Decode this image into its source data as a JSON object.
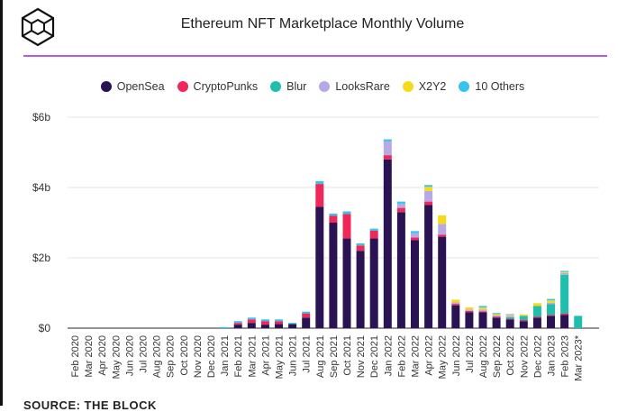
{
  "header": {
    "title": "Ethereum NFT Marketplace Monthly Volume",
    "logo_icon": "cube-logo-icon",
    "source": "SOURCE: THE BLOCK"
  },
  "colors": {
    "OpenSea": "#2a1352",
    "CryptoPunks": "#f0285a",
    "Blur": "#1fbfae",
    "LooksRare": "#b7a8e6",
    "X2Y2": "#f5d91c",
    "10 Others": "#35c3ef",
    "accent_rule": "#b05be0"
  },
  "chart_data": {
    "type": "bar",
    "stacked": true,
    "title": "Ethereum NFT Marketplace Monthly Volume",
    "xlabel": "",
    "ylabel": "",
    "ylim": [
      0,
      6
    ],
    "yunit": "$ billions",
    "yticks": [
      0,
      2,
      4,
      6
    ],
    "ytick_labels": [
      "$0",
      "$2b",
      "$4b",
      "$6b"
    ],
    "grid": true,
    "legend_position": "top-center",
    "categories": [
      "Feb 2020",
      "Mar 2020",
      "Apr 2020",
      "May 2020",
      "Jun 2020",
      "Jul 2020",
      "Aug 2020",
      "Sep 2020",
      "Oct 2020",
      "Nov 2020",
      "Dec 2020",
      "Jan 2021",
      "Feb 2021",
      "Mar 2021",
      "Apr 2021",
      "May 2021",
      "Jun 2021",
      "Jul 2021",
      "Aug 2021",
      "Sep 2021",
      "Oct 2021",
      "Nov 2021",
      "Dec 2021",
      "Jan 2022",
      "Feb 2022",
      "Mar 2022",
      "Apr 2022",
      "May 2022",
      "Jun 2022",
      "Jul 2022",
      "Aug 2022",
      "Sep 2022",
      "Oct 2022",
      "Nov 2022",
      "Dec 2022",
      "Jan 2023",
      "Feb 2023",
      "Mar 2023*"
    ],
    "series": [
      {
        "name": "OpenSea",
        "values": [
          0,
          0,
          0,
          0,
          0,
          0,
          0,
          0,
          0,
          0,
          0,
          0,
          0.1,
          0.15,
          0.1,
          0.12,
          0.12,
          0.3,
          3.45,
          3.0,
          2.55,
          2.2,
          2.55,
          4.8,
          3.3,
          2.5,
          3.5,
          2.6,
          0.65,
          0.45,
          0.45,
          0.3,
          0.25,
          0.2,
          0.3,
          0.35,
          0.38,
          0
        ]
      },
      {
        "name": "CryptoPunks",
        "values": [
          0,
          0,
          0,
          0,
          0,
          0,
          0,
          0,
          0,
          0,
          0,
          0,
          0.05,
          0.1,
          0.1,
          0.08,
          0,
          0.12,
          0.65,
          0.2,
          0.7,
          0.15,
          0.22,
          0.12,
          0.12,
          0.08,
          0.1,
          0.06,
          0.04,
          0.04,
          0.03,
          0.03,
          0.02,
          0.03,
          0.03,
          0.03,
          0.04,
          0
        ]
      },
      {
        "name": "Blur",
        "values": [
          0,
          0,
          0,
          0,
          0,
          0,
          0,
          0,
          0,
          0,
          0,
          0,
          0,
          0,
          0,
          0,
          0,
          0,
          0,
          0,
          0,
          0,
          0,
          0,
          0,
          0,
          0,
          0,
          0,
          0,
          0,
          0,
          0.04,
          0.12,
          0.3,
          0.3,
          1.1,
          0.35
        ]
      },
      {
        "name": "LooksRare",
        "values": [
          0,
          0,
          0,
          0,
          0,
          0,
          0,
          0,
          0,
          0,
          0,
          0,
          0,
          0,
          0,
          0,
          0,
          0,
          0,
          0,
          0,
          0,
          0,
          0.4,
          0.12,
          0.12,
          0.3,
          0.3,
          0.04,
          0.04,
          0.05,
          0.03,
          0.04,
          0,
          0,
          0.04,
          0.05,
          0
        ]
      },
      {
        "name": "X2Y2",
        "values": [
          0,
          0,
          0,
          0,
          0,
          0,
          0,
          0,
          0,
          0,
          0,
          0,
          0,
          0,
          0,
          0,
          0,
          0,
          0,
          0,
          0,
          0,
          0,
          0,
          0,
          0,
          0.12,
          0.25,
          0.08,
          0.06,
          0.06,
          0.04,
          0.03,
          0.04,
          0.08,
          0.07,
          0.03,
          0
        ]
      },
      {
        "name": "10 Others",
        "values": [
          0,
          0,
          0,
          0,
          0,
          0,
          0,
          0,
          0,
          0,
          0,
          0.03,
          0.05,
          0.05,
          0.05,
          0.05,
          0.03,
          0.05,
          0.08,
          0.06,
          0.07,
          0.06,
          0.06,
          0.05,
          0.06,
          0.06,
          0.05,
          0,
          0,
          0,
          0.04,
          0.03,
          0.02,
          0,
          0,
          0.04,
          0.03,
          0
        ]
      }
    ]
  }
}
